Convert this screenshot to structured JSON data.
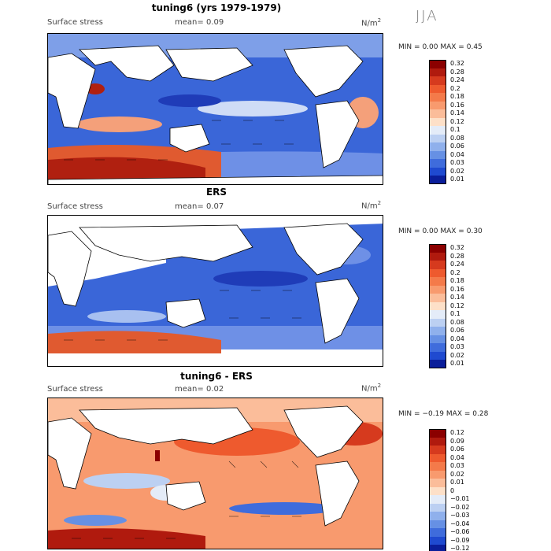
{
  "season": "JJA",
  "unit_base": "N/m",
  "unit_sup": "2",
  "panels": [
    {
      "title": "tuning6 (yrs 1979-1979)",
      "field_label": "Surface stress",
      "mean_label": "mean=",
      "mean_value": "0.09",
      "min_label": "MIN =",
      "min_value": "0.00",
      "max_label": "MAX =",
      "max_value": "0.45",
      "scale": "stress"
    },
    {
      "title": "ERS",
      "field_label": "Surface stress",
      "mean_label": "mean=",
      "mean_value": "0.07",
      "min_label": "MIN =",
      "min_value": "0.00",
      "max_label": "MAX =",
      "max_value": "0.30",
      "scale": "stress"
    },
    {
      "title": "tuning6 - ERS",
      "field_label": "Surface stress",
      "mean_label": "mean=",
      "mean_value": "0.02",
      "min_label": "MIN =",
      "min_value": "−0.19",
      "max_label": "MAX =",
      "max_value": "0.28",
      "scale": "diff"
    }
  ],
  "colorbars": {
    "stress": {
      "labels": [
        "0.32",
        "0.28",
        "0.24",
        "0.2",
        "0.18",
        "0.16",
        "0.14",
        "0.12",
        "0.1",
        "0.08",
        "0.06",
        "0.04",
        "0.03",
        "0.02",
        "0.01"
      ],
      "colors": [
        "#8b0000",
        "#b01a0e",
        "#d63a1e",
        "#ee5a2e",
        "#f47a4a",
        "#f89a6e",
        "#fbbd9a",
        "#fde0c8",
        "#e4ecf8",
        "#bcd0f2",
        "#8fb0ec",
        "#6690e4",
        "#3f6cdc",
        "#1f4ad0",
        "#0a1e9a"
      ]
    },
    "diff": {
      "labels": [
        "0.12",
        "0.09",
        "0.06",
        "0.04",
        "0.03",
        "0.02",
        "0.01",
        "0",
        "−0.01",
        "−0.02",
        "−0.03",
        "−0.04",
        "−0.06",
        "−0.09",
        "−0.12"
      ],
      "colors": [
        "#8b0000",
        "#b01a0e",
        "#d63a1e",
        "#ee5a2e",
        "#f47a4a",
        "#f89a6e",
        "#fbbd9a",
        "#fde0c8",
        "#e4ecf8",
        "#bcd0f2",
        "#8fb0ec",
        "#6690e4",
        "#3f6cdc",
        "#1f4ad0",
        "#0a1e9a"
      ]
    }
  }
}
